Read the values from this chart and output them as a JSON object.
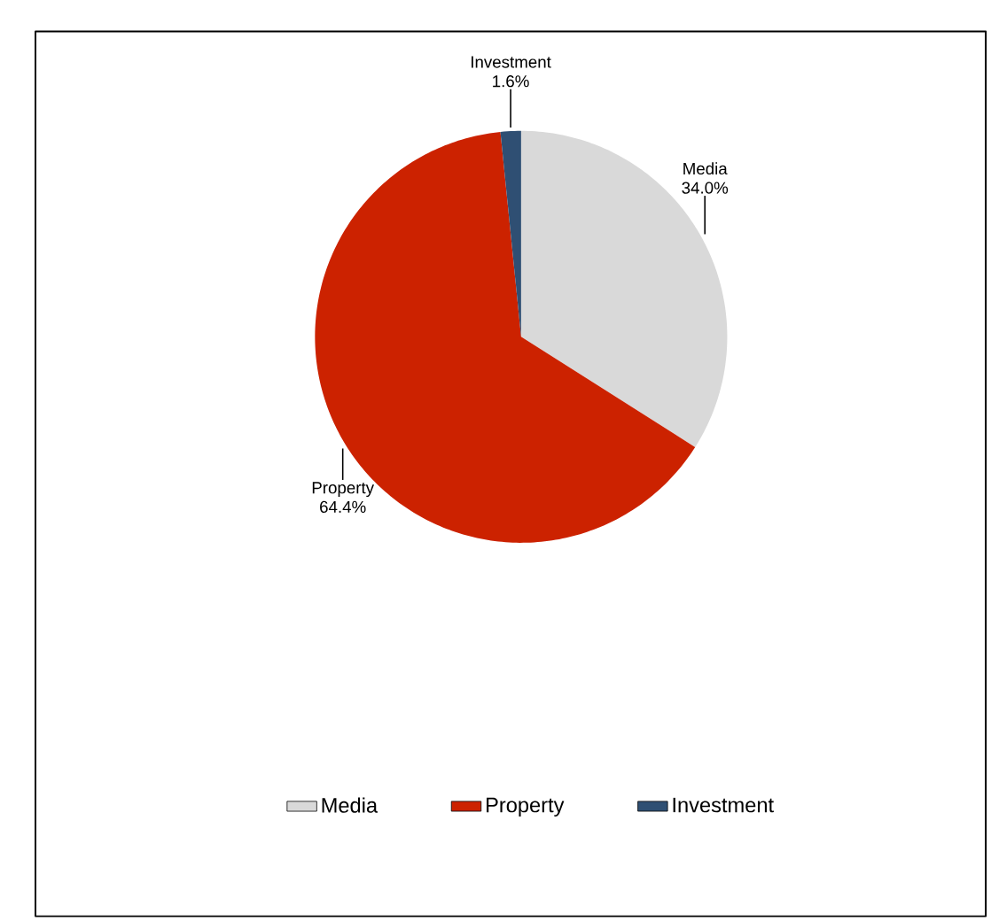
{
  "chart_data": {
    "type": "pie",
    "categories": [
      "Media",
      "Property",
      "Investment"
    ],
    "values": [
      34.0,
      64.4,
      1.6
    ],
    "value_labels": [
      "34.0%",
      "64.4%",
      "1.6%"
    ],
    "colors": [
      "#d9d9d9",
      "#cc2200",
      "#2f4f73"
    ],
    "legend": "bottom"
  }
}
